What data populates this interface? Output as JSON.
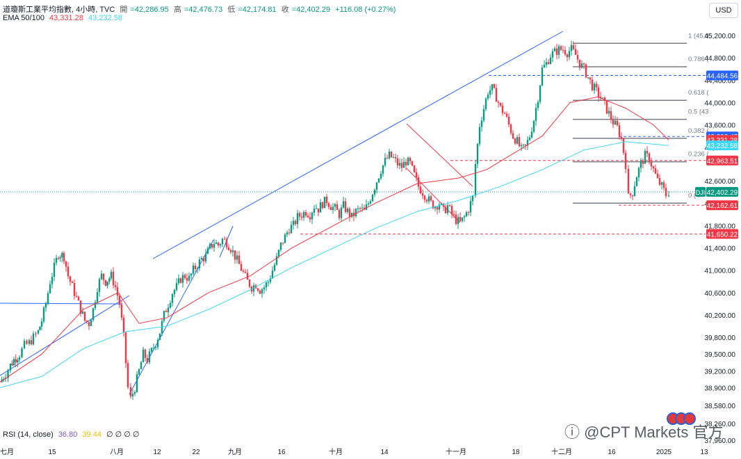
{
  "header": {
    "symbol": "道瓊斯工業平均指數, 4小時, TVC",
    "open_label": "開",
    "open_value": "=42,286.95",
    "high_label": "高",
    "high_value": "=42,476.73",
    "low_label": "低",
    "low_value": "=42,174.81",
    "close_label": "收",
    "close_value": "=42,402.29",
    "change": "+116.08 (+0.27%)",
    "ema_label": "EMA 50/100",
    "ema50_value": "43,331.28",
    "ema100_value": "43,232.58"
  },
  "rsi": {
    "label": "RSI (14, close)",
    "value1": "36.80",
    "value2": "39.44",
    "extra": "∅ ∅ ∅ ∅"
  },
  "currency": "USD",
  "watermark": {
    "text": "@CPT Markets 官方"
  },
  "colors": {
    "up": "#089981",
    "down": "#f23645",
    "ema50": "#f23645",
    "ema100": "#3dd6f5",
    "trend": "#2962ff",
    "channel_red": "#f23645"
  },
  "chart_data": {
    "type": "candlestick",
    "symbol": "DJI",
    "interval": "4h",
    "ylim": [
      37960,
      45300
    ],
    "y_ticks": [
      "45,200.00",
      "44,800.00",
      "44,400.00",
      "44,000.00",
      "43,600.00",
      "43,200.00",
      "42,600.00",
      "42,200.00",
      "41,800.00",
      "41,400.00",
      "41,000.00",
      "40,600.00",
      "40,200.00",
      "39,800.00",
      "39,500.00",
      "39,200.00",
      "38,900.00",
      "38,580.00",
      "38,260.00",
      "37,960.00"
    ],
    "x_ticks": [
      "七月",
      "15",
      "八月",
      "12",
      "22",
      "九月",
      "16",
      "十月",
      "14",
      "十一月",
      "18",
      "十二月",
      "16",
      "2025",
      "13"
    ],
    "price_labels": [
      {
        "text": "44,484.56",
        "color": "#2962ff",
        "value": 44484.56
      },
      {
        "text": "43,393.47",
        "color": "#2962ff",
        "value": 43393.47
      },
      {
        "text": "43,331.28",
        "color": "#f23645",
        "value": 43331.28
      },
      {
        "text": "43,232.58",
        "color": "#3dd6f5",
        "value": 43232.58
      },
      {
        "text": "42,963.51",
        "color": "#f23645",
        "value": 42963.51
      },
      {
        "text": "42,402.29",
        "color": "#089981",
        "value": 42402.29
      },
      {
        "text": "42,162.61",
        "color": "#f23645",
        "value": 42162.61
      },
      {
        "text": "41,650.22",
        "color": "#f23645",
        "value": 41650.22
      }
    ],
    "last_symbol_tag": "DJI",
    "fib_levels": [
      {
        "label": "1 (45,0",
        "value": 45060
      },
      {
        "label": "0.786 (",
        "value": 44640
      },
      {
        "label": "0.618 (",
        "value": 44040
      },
      {
        "label": "0.5 (43",
        "value": 43700
      },
      {
        "label": "0.382 (",
        "value": 43360
      },
      {
        "label": "0.236 (",
        "value": 42940
      },
      {
        "label": "0 (4",
        "value": 42200
      }
    ],
    "close_path": [
      [
        0,
        39000
      ],
      [
        8,
        39150
      ],
      [
        15,
        39300
      ],
      [
        20,
        39400
      ],
      [
        28,
        39500
      ],
      [
        35,
        39650
      ],
      [
        42,
        39700
      ],
      [
        48,
        39800
      ],
      [
        55,
        39900
      ],
      [
        60,
        40100
      ],
      [
        66,
        40400
      ],
      [
        72,
        40800
      ],
      [
        78,
        41050
      ],
      [
        84,
        41300
      ],
      [
        92,
        41250
      ],
      [
        98,
        40900
      ],
      [
        104,
        40700
      ],
      [
        110,
        40500
      ],
      [
        116,
        40300
      ],
      [
        122,
        40100
      ],
      [
        128,
        40050
      ],
      [
        134,
        40300
      ],
      [
        140,
        40700
      ],
      [
        146,
        40900
      ],
      [
        152,
        40800
      ],
      [
        160,
        40900
      ],
      [
        166,
        40700
      ],
      [
        172,
        40400
      ],
      [
        178,
        39800
      ],
      [
        184,
        38900
      ],
      [
        188,
        38700
      ],
      [
        194,
        38900
      ],
      [
        200,
        39200
      ],
      [
        206,
        39500
      ],
      [
        212,
        39400
      ],
      [
        218,
        39550
      ],
      [
        224,
        39700
      ],
      [
        230,
        39900
      ],
      [
        236,
        40200
      ],
      [
        242,
        40400
      ],
      [
        248,
        40600
      ],
      [
        254,
        40700
      ],
      [
        260,
        40850
      ],
      [
        266,
        40900
      ],
      [
        272,
        40850
      ],
      [
        278,
        41000
      ],
      [
        284,
        41100
      ],
      [
        290,
        41200
      ],
      [
        296,
        41250
      ],
      [
        302,
        41400
      ],
      [
        308,
        41500
      ],
      [
        314,
        41450
      ],
      [
        320,
        41550
      ],
      [
        326,
        41500
      ],
      [
        332,
        41400
      ],
      [
        338,
        41250
      ],
      [
        344,
        41100
      ],
      [
        350,
        40950
      ],
      [
        356,
        40800
      ],
      [
        362,
        40700
      ],
      [
        368,
        40750
      ],
      [
        374,
        40650
      ],
      [
        380,
        40700
      ],
      [
        386,
        40800
      ],
      [
        392,
        41000
      ],
      [
        398,
        41200
      ],
      [
        404,
        41450
      ],
      [
        410,
        41600
      ],
      [
        416,
        41750
      ],
      [
        422,
        41800
      ],
      [
        428,
        41950
      ],
      [
        434,
        42000
      ],
      [
        440,
        42050
      ],
      [
        446,
        42000
      ],
      [
        452,
        42150
      ],
      [
        458,
        42100
      ],
      [
        464,
        42200
      ],
      [
        470,
        42250
      ],
      [
        476,
        42150
      ],
      [
        482,
        42100
      ],
      [
        488,
        42000
      ],
      [
        494,
        42150
      ],
      [
        500,
        42050
      ],
      [
        506,
        41950
      ],
      [
        512,
        42050
      ],
      [
        518,
        42100
      ],
      [
        524,
        42050
      ],
      [
        530,
        42200
      ],
      [
        536,
        42400
      ],
      [
        542,
        42600
      ],
      [
        548,
        42800
      ],
      [
        554,
        42950
      ],
      [
        560,
        43050
      ],
      [
        566,
        43000
      ],
      [
        572,
        42900
      ],
      [
        578,
        42850
      ],
      [
        584,
        42950
      ],
      [
        590,
        42900
      ],
      [
        596,
        42700
      ],
      [
        602,
        42500
      ],
      [
        608,
        42400
      ],
      [
        614,
        42300
      ],
      [
        620,
        42200
      ],
      [
        626,
        42150
      ],
      [
        632,
        42200
      ],
      [
        638,
        42050
      ],
      [
        644,
        42150
      ],
      [
        650,
        42000
      ],
      [
        656,
        41900
      ],
      [
        662,
        41850
      ],
      [
        668,
        41950
      ],
      [
        674,
        42100
      ],
      [
        680,
        42300
      ],
      [
        684,
        42900
      ],
      [
        690,
        43600
      ],
      [
        696,
        43900
      ],
      [
        702,
        44200
      ],
      [
        708,
        44250
      ],
      [
        714,
        44100
      ],
      [
        720,
        43900
      ],
      [
        726,
        43800
      ],
      [
        732,
        43600
      ],
      [
        738,
        43400
      ],
      [
        744,
        43300
      ],
      [
        750,
        43150
      ],
      [
        756,
        43200
      ],
      [
        762,
        43400
      ],
      [
        768,
        43700
      ],
      [
        774,
        44100
      ],
      [
        780,
        44600
      ],
      [
        786,
        44700
      ],
      [
        792,
        44850
      ],
      [
        798,
        44900
      ],
      [
        804,
        44950
      ],
      [
        810,
        44950
      ],
      [
        816,
        44900
      ],
      [
        822,
        44950
      ],
      [
        828,
        44850
      ],
      [
        834,
        44700
      ],
      [
        840,
        44600
      ],
      [
        846,
        44450
      ],
      [
        852,
        44300
      ],
      [
        858,
        44200
      ],
      [
        864,
        44100
      ],
      [
        870,
        43950
      ],
      [
        876,
        43800
      ],
      [
        882,
        43650
      ],
      [
        888,
        43550
      ],
      [
        894,
        43350
      ],
      [
        900,
        42900
      ],
      [
        904,
        42300
      ],
      [
        910,
        42400
      ],
      [
        916,
        42700
      ],
      [
        922,
        42900
      ],
      [
        928,
        43050
      ],
      [
        934,
        43000
      ],
      [
        940,
        42800
      ],
      [
        946,
        42600
      ],
      [
        952,
        42500
      ],
      [
        958,
        42350
      ],
      [
        962,
        42402
      ]
    ],
    "ema50_path": [
      [
        0,
        39000
      ],
      [
        60,
        39500
      ],
      [
        120,
        40300
      ],
      [
        170,
        40600
      ],
      [
        200,
        40050
      ],
      [
        240,
        40150
      ],
      [
        300,
        40600
      ],
      [
        360,
        40900
      ],
      [
        420,
        41400
      ],
      [
        480,
        41800
      ],
      [
        540,
        42200
      ],
      [
        600,
        42550
      ],
      [
        660,
        42650
      ],
      [
        700,
        42800
      ],
      [
        740,
        43100
      ],
      [
        780,
        43400
      ],
      [
        820,
        44000
      ],
      [
        860,
        44100
      ],
      [
        900,
        43900
      ],
      [
        940,
        43600
      ],
      [
        962,
        43331
      ]
    ],
    "ema100_path": [
      [
        0,
        38900
      ],
      [
        60,
        39100
      ],
      [
        120,
        39600
      ],
      [
        180,
        39900
      ],
      [
        240,
        40000
      ],
      [
        300,
        40300
      ],
      [
        360,
        40650
      ],
      [
        420,
        41050
      ],
      [
        480,
        41400
      ],
      [
        540,
        41750
      ],
      [
        600,
        42050
      ],
      [
        660,
        42250
      ],
      [
        720,
        42500
      ],
      [
        780,
        42800
      ],
      [
        840,
        43150
      ],
      [
        900,
        43300
      ],
      [
        962,
        43232
      ]
    ]
  }
}
